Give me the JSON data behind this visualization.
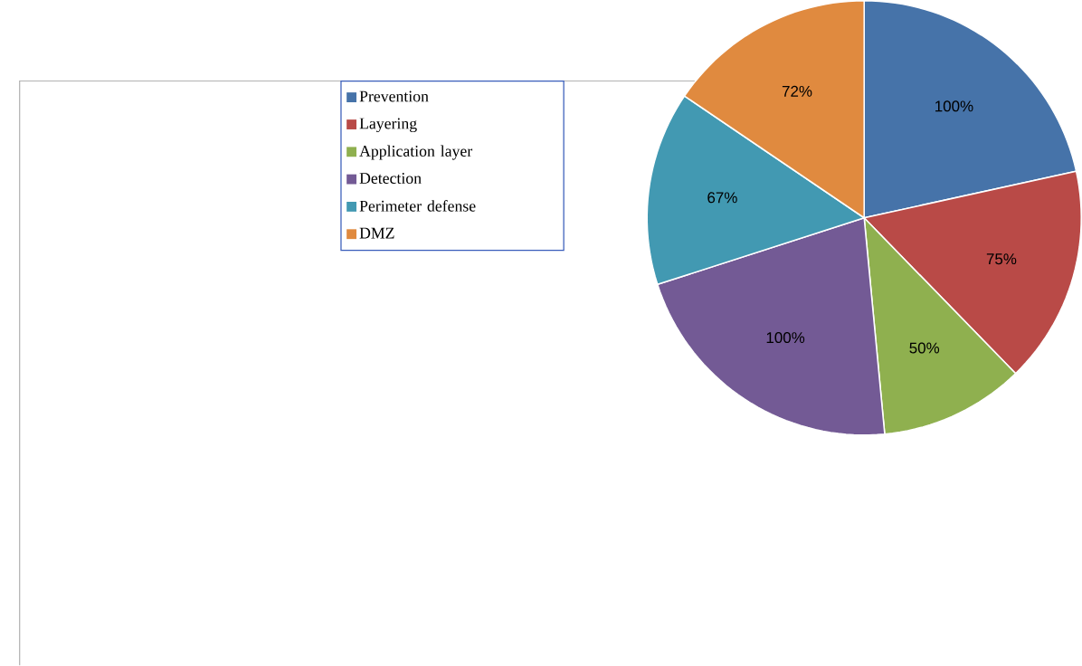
{
  "chart_data": {
    "type": "pie",
    "categories": [
      "Prevention",
      "Layering",
      "Application layer",
      "Detection",
      "Perimeter defense",
      "DMZ"
    ],
    "values": [
      100,
      75,
      50,
      100,
      67,
      72
    ],
    "value_labels": [
      "100%",
      "75%",
      "50%",
      "100%",
      "67%",
      "72%"
    ],
    "colors": [
      "#4673a9",
      "#b94a47",
      "#8fb04f",
      "#735a95",
      "#4299b2",
      "#e08a3f"
    ],
    "legend": "left"
  }
}
